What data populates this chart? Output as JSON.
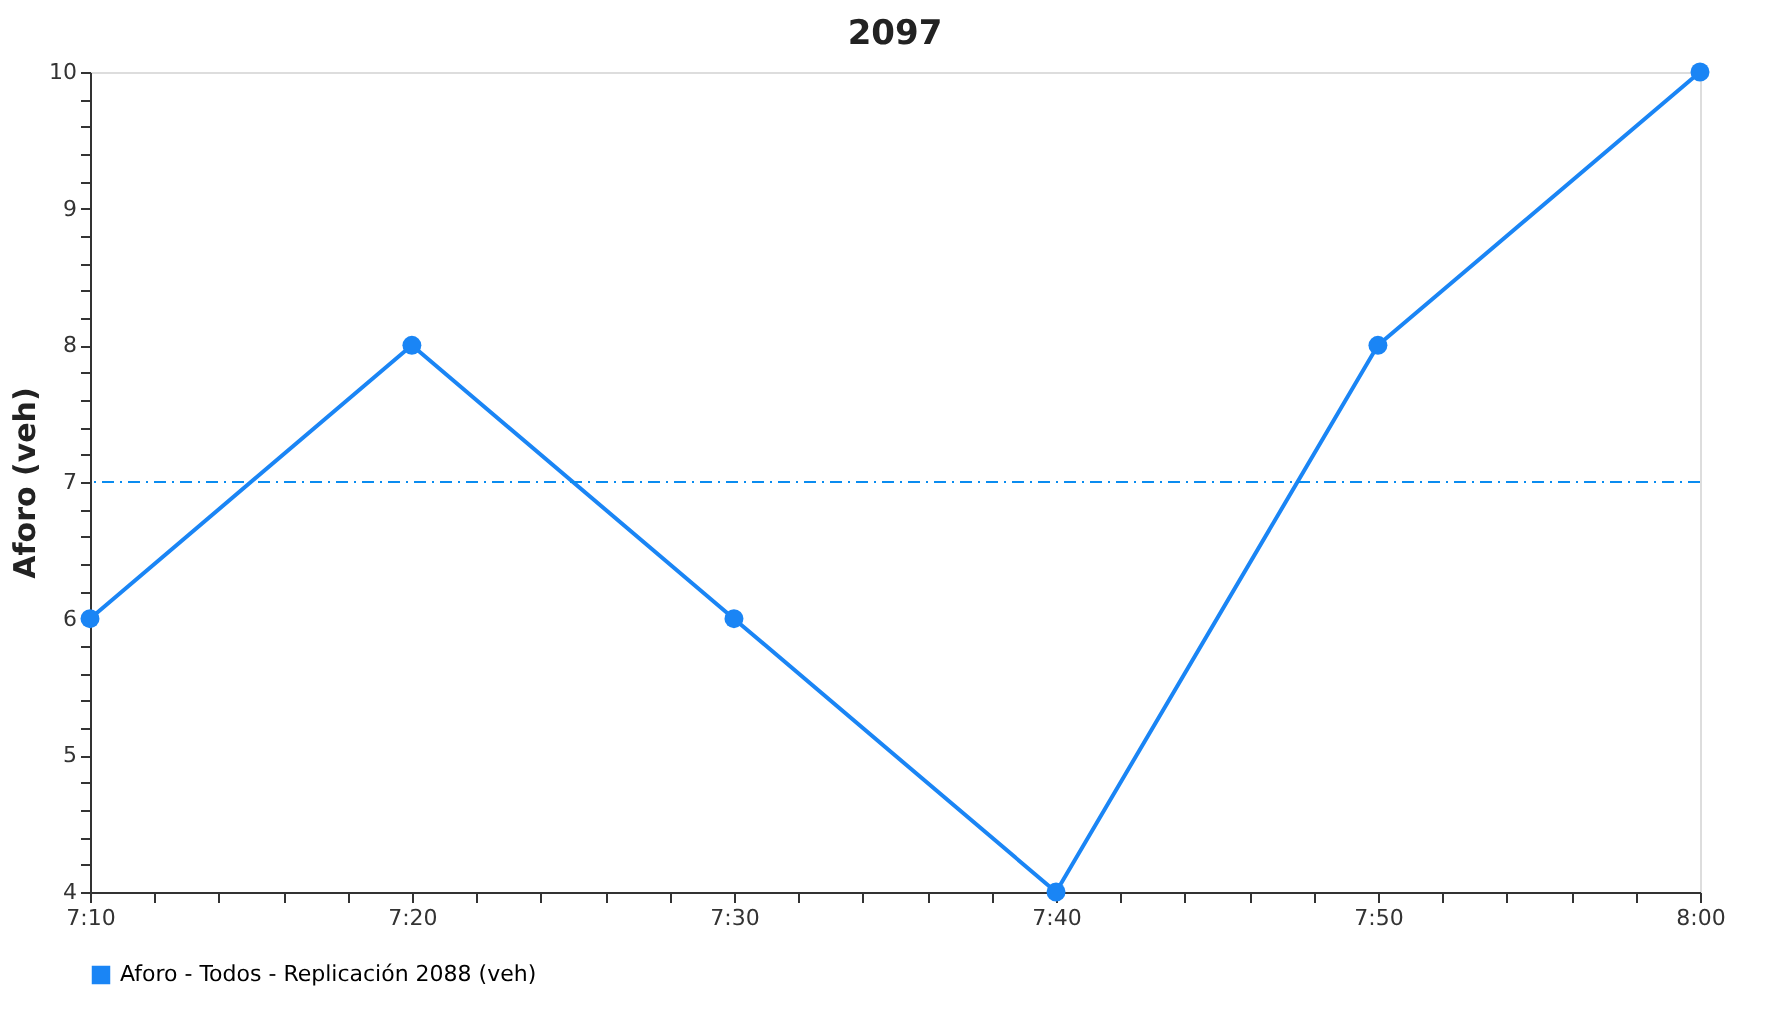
{
  "chart_data": {
    "type": "line",
    "title": "2097",
    "ylabel": "Aforo (veh)",
    "x": [
      7.1667,
      7.3333,
      7.5,
      7.6667,
      7.8333,
      8
    ],
    "series": [
      {
        "name": "Aforo - Todos - Replicación 2088 (veh)",
        "color": "#1a85f5",
        "values": [
          6,
          8,
          6,
          4,
          8,
          10
        ]
      }
    ],
    "xlim": [
      7.1667,
      8
    ],
    "xticks": [
      {
        "value": 7.1667,
        "label": "7:10"
      },
      {
        "value": 7.2,
        "label": null
      },
      {
        "value": 7.2333,
        "label": null
      },
      {
        "value": 7.2667,
        "label": null
      },
      {
        "value": 7.3,
        "label": null
      },
      {
        "value": 7.3333,
        "label": "7:20"
      },
      {
        "value": 7.3667,
        "label": null
      },
      {
        "value": 7.4,
        "label": null
      },
      {
        "value": 7.4333,
        "label": null
      },
      {
        "value": 7.4667,
        "label": null
      },
      {
        "value": 7.5,
        "label": "7:30"
      },
      {
        "value": 7.5333,
        "label": null
      },
      {
        "value": 7.5667,
        "label": null
      },
      {
        "value": 7.6,
        "label": null
      },
      {
        "value": 7.6333,
        "label": null
      },
      {
        "value": 7.6667,
        "label": "7:40"
      },
      {
        "value": 7.7,
        "label": null
      },
      {
        "value": 7.7333,
        "label": null
      },
      {
        "value": 7.7667,
        "label": null
      },
      {
        "value": 7.8,
        "label": null
      },
      {
        "value": 7.8333,
        "label": "7:50"
      },
      {
        "value": 7.8667,
        "label": null
      },
      {
        "value": 7.9,
        "label": null
      },
      {
        "value": 7.9333,
        "label": null
      },
      {
        "value": 7.9667,
        "label": null
      },
      {
        "value": 8,
        "label": "8:00"
      }
    ],
    "ylim": [
      4,
      10
    ],
    "yticks": [
      4,
      {
        "value": 4.2,
        "label": null
      },
      {
        "value": 4.4,
        "label": null
      },
      {
        "value": 4.6,
        "label": null
      },
      {
        "value": 4.8,
        "label": null
      },
      5,
      {
        "value": 5.2,
        "label": null
      },
      {
        "value": 5.4,
        "label": null
      },
      {
        "value": 5.6,
        "label": null
      },
      {
        "value": 5.8,
        "label": null
      },
      6,
      {
        "value": 6.2,
        "label": null
      },
      {
        "value": 6.4,
        "label": null
      },
      {
        "value": 6.6,
        "label": null
      },
      {
        "value": 6.8,
        "label": null
      },
      7,
      {
        "value": 7.2,
        "label": null
      },
      {
        "value": 7.4,
        "label": null
      },
      {
        "value": 7.6,
        "label": null
      },
      {
        "value": 7.8,
        "label": null
      },
      8,
      {
        "value": 8.2,
        "label": null
      },
      {
        "value": 8.4,
        "label": null
      },
      {
        "value": 8.6,
        "label": null
      },
      {
        "value": 8.8,
        "label": null
      },
      9,
      {
        "value": 9.2,
        "label": null
      },
      {
        "value": 9.4,
        "label": null
      },
      {
        "value": 9.6,
        "label": null
      },
      {
        "value": 9.8,
        "label": null
      },
      10
    ],
    "ref_lines": [
      {
        "axis": "y",
        "value": 7,
        "color": "#0a8cf0",
        "line_style": "dashdot"
      }
    ],
    "grid": false,
    "legend": "bottom",
    "marker": "circle",
    "line_style": "solid"
  }
}
